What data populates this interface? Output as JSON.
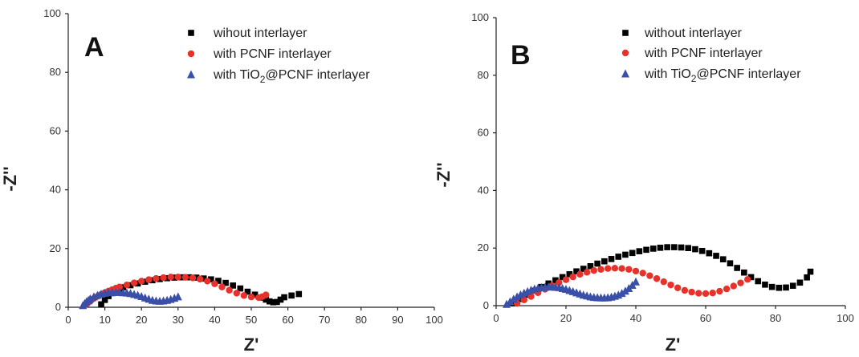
{
  "chart_data": [
    {
      "panel": "A",
      "type": "scatter",
      "xlabel": "Z'",
      "ylabel": "-Z''",
      "xlim": [
        0,
        100
      ],
      "ylim": [
        0,
        100
      ],
      "xticks": [
        0,
        10,
        20,
        30,
        40,
        50,
        60,
        70,
        80,
        90,
        100
      ],
      "yticks": [
        0,
        20,
        40,
        60,
        80,
        100
      ],
      "legend_position": "top-center",
      "series": [
        {
          "name": "wihout interlayer",
          "color": "#000000",
          "marker": "square",
          "x": [
            9,
            10,
            11,
            12,
            13,
            14,
            15,
            17,
            19,
            21,
            23,
            25,
            27,
            29,
            31,
            33,
            35,
            37,
            39,
            41,
            43,
            45,
            47,
            49,
            51,
            53,
            54,
            55,
            56,
            57,
            58,
            59,
            61,
            63
          ],
          "y": [
            1.0,
            2.5,
            3.8,
            4.8,
            5.5,
            6.2,
            6.8,
            7.5,
            8.1,
            8.7,
            9.2,
            9.6,
            9.9,
            10.1,
            10.2,
            10.2,
            10.1,
            9.8,
            9.5,
            9.0,
            8.3,
            7.4,
            6.4,
            5.3,
            4.3,
            3.3,
            2.6,
            2.0,
            1.7,
            1.8,
            2.6,
            3.4,
            4.0,
            4.5
          ]
        },
        {
          "name": "with PCNF interlayer",
          "color": "#e8312a",
          "marker": "circle",
          "x": [
            5,
            6,
            7,
            8,
            9,
            10,
            11,
            12,
            13,
            14,
            16,
            18,
            20,
            22,
            24,
            26,
            28,
            30,
            32,
            34,
            36,
            38,
            40,
            42,
            44,
            46,
            48,
            50,
            52,
            53,
            54
          ],
          "y": [
            1.0,
            2.0,
            3.0,
            3.7,
            4.4,
            5.0,
            5.5,
            6.0,
            6.5,
            6.9,
            7.6,
            8.3,
            8.9,
            9.4,
            9.8,
            10.1,
            10.3,
            10.3,
            10.2,
            10.0,
            9.6,
            8.9,
            8.0,
            6.9,
            5.8,
            4.8,
            4.0,
            3.5,
            3.3,
            3.6,
            4.2
          ]
        },
        {
          "name": "with TiO2@PCNF interlayer",
          "color": "#3a4fa8",
          "marker": "triangle",
          "x": [
            4,
            4.5,
            5,
            5.5,
            6,
            7,
            8,
            9,
            10,
            11,
            12,
            13,
            14,
            15,
            16,
            17,
            18,
            19,
            20,
            21,
            22,
            23,
            24,
            25,
            26,
            27,
            28,
            29,
            30
          ],
          "y": [
            0.6,
            1.3,
            1.9,
            2.4,
            2.9,
            3.6,
            4.1,
            4.5,
            4.8,
            5.0,
            5.1,
            5.1,
            5.1,
            5.0,
            4.9,
            4.7,
            4.4,
            4.1,
            3.7,
            3.2,
            2.8,
            2.4,
            2.2,
            2.1,
            2.2,
            2.4,
            2.7,
            3.1,
            3.6
          ]
        }
      ]
    },
    {
      "panel": "B",
      "type": "scatter",
      "xlabel": "Z'",
      "ylabel": "-Z''",
      "xlim": [
        0,
        100
      ],
      "ylim": [
        0,
        100
      ],
      "xticks": [
        0,
        20,
        40,
        60,
        80,
        100
      ],
      "yticks": [
        0,
        20,
        40,
        60,
        80,
        100
      ],
      "legend_position": "top-center",
      "series": [
        {
          "name": "without interlayer",
          "color": "#000000",
          "marker": "square",
          "x": [
            5,
            7,
            9,
            11,
            13,
            15,
            17,
            19,
            21,
            23,
            25,
            27,
            29,
            31,
            33,
            35,
            37,
            39,
            41,
            43,
            45,
            47,
            49,
            51,
            53,
            55,
            57,
            59,
            61,
            63,
            65,
            67,
            69,
            71,
            73,
            75,
            77,
            79,
            81,
            83,
            85,
            87,
            89,
            90
          ],
          "y": [
            0.8,
            2.3,
            3.8,
            5.2,
            6.5,
            7.7,
            8.8,
            9.9,
            10.9,
            11.9,
            12.8,
            13.7,
            14.6,
            15.4,
            16.2,
            17.0,
            17.7,
            18.3,
            18.9,
            19.4,
            19.8,
            20.1,
            20.3,
            20.3,
            20.2,
            20.0,
            19.6,
            19.0,
            18.2,
            17.3,
            16.1,
            14.7,
            13.1,
            11.5,
            9.9,
            8.5,
            7.3,
            6.5,
            6.2,
            6.3,
            6.9,
            8.0,
            9.8,
            11.8
          ]
        },
        {
          "name": "with PCNF interlayer",
          "color": "#e8312a",
          "marker": "circle",
          "x": [
            6,
            8,
            10,
            12,
            14,
            16,
            18,
            20,
            22,
            24,
            26,
            28,
            30,
            32,
            34,
            36,
            38,
            40,
            42,
            44,
            46,
            48,
            50,
            52,
            54,
            56,
            58,
            60,
            62,
            64,
            66,
            68,
            70,
            72
          ],
          "y": [
            0.8,
            2.0,
            3.2,
            4.5,
            5.7,
            6.9,
            8.0,
            9.0,
            10.0,
            10.9,
            11.6,
            12.2,
            12.6,
            12.9,
            13.0,
            12.9,
            12.6,
            12.0,
            11.3,
            10.4,
            9.4,
            8.3,
            7.2,
            6.2,
            5.3,
            4.7,
            4.3,
            4.2,
            4.4,
            5.0,
            5.8,
            6.8,
            7.9,
            9.1
          ]
        },
        {
          "name": "with TiO2@PCNF interlayer",
          "color": "#3a4fa8",
          "marker": "triangle",
          "x": [
            3,
            4,
            5,
            6,
            7,
            8,
            9,
            10,
            11,
            12,
            13,
            14,
            15,
            16,
            17,
            18,
            19,
            20,
            21,
            22,
            23,
            24,
            25,
            26,
            27,
            28,
            29,
            30,
            31,
            32,
            33,
            34,
            35,
            36,
            37,
            38,
            39,
            40
          ],
          "y": [
            0.5,
            1.4,
            2.3,
            3.1,
            3.8,
            4.4,
            4.9,
            5.4,
            5.8,
            6.1,
            6.3,
            6.4,
            6.5,
            6.5,
            6.4,
            6.3,
            6.0,
            5.7,
            5.3,
            4.9,
            4.5,
            4.1,
            3.7,
            3.4,
            3.1,
            2.9,
            2.8,
            2.7,
            2.7,
            2.8,
            3.0,
            3.3,
            3.7,
            4.3,
            5.1,
            6.0,
            7.1,
            8.3
          ]
        }
      ]
    }
  ]
}
